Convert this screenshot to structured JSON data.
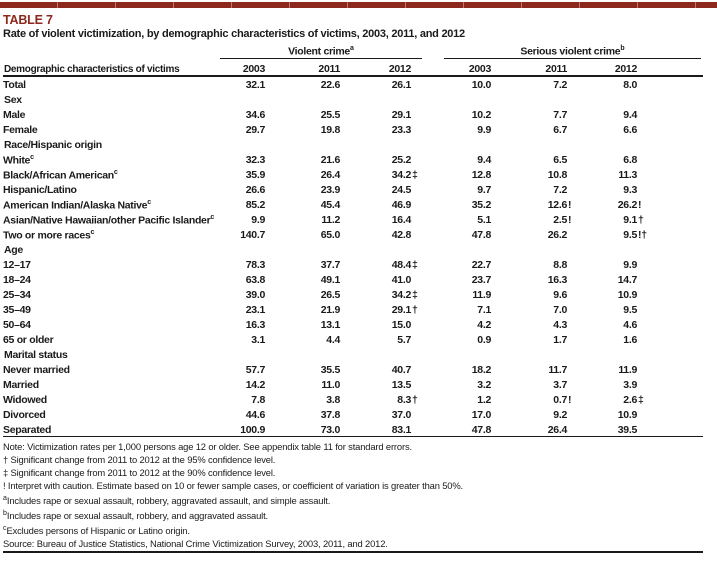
{
  "header": {
    "table_label": "TABLE 7",
    "title": "Rate of violent victimization, by demographic characteristics of victims, 2003, 2011, and 2012",
    "accent_color": "#8c291c"
  },
  "table": {
    "row_header_label": "Demographic characteristics of victims",
    "groups": [
      {
        "label": "Violent crime",
        "sup": "a"
      },
      {
        "label": "Serious violent crime",
        "sup": "b"
      }
    ],
    "years": [
      "2003",
      "2011",
      "2012",
      "2003",
      "2011",
      "2012"
    ],
    "rows": [
      {
        "label": "Total",
        "sup": "",
        "type": "total",
        "values": [
          "32.1",
          "22.6",
          "26.1",
          "10.0",
          "7.2",
          "8.0"
        ]
      },
      {
        "label": "Sex",
        "sup": "",
        "type": "section",
        "values": []
      },
      {
        "label": "Male",
        "sup": "",
        "type": "data",
        "values": [
          "34.6",
          "25.5",
          "29.1",
          "10.2",
          "7.7",
          "9.4"
        ]
      },
      {
        "label": "Female",
        "sup": "",
        "type": "data",
        "values": [
          "29.7",
          "19.8",
          "23.3",
          "9.9",
          "6.7",
          "6.6"
        ]
      },
      {
        "label": "Race/Hispanic origin",
        "sup": "",
        "type": "section",
        "values": []
      },
      {
        "label": "White",
        "sup": "c",
        "type": "data",
        "values": [
          "32.3",
          "21.6",
          "25.2",
          "9.4",
          "6.5",
          "6.8"
        ]
      },
      {
        "label": "Black/African American",
        "sup": "c",
        "type": "data",
        "values": [
          "35.9",
          "26.4",
          "34.2 ‡",
          "12.8",
          "10.8",
          "11.3"
        ]
      },
      {
        "label": "Hispanic/Latino",
        "sup": "",
        "type": "data",
        "values": [
          "26.6",
          "23.9",
          "24.5",
          "9.7",
          "7.2",
          "9.3"
        ]
      },
      {
        "label": "American Indian/Alaska Native",
        "sup": "c",
        "type": "data",
        "values": [
          "85.2",
          "45.4",
          "46.9",
          "35.2",
          "12.6 !",
          "26.2 !"
        ]
      },
      {
        "label": "Asian/Native Hawaiian/other Pacific Islander",
        "sup": "c",
        "type": "data",
        "values": [
          "9.9",
          "11.2",
          "16.4",
          "5.1",
          "2.5 !",
          "9.1 †"
        ]
      },
      {
        "label": "Two or more races",
        "sup": "c",
        "type": "data",
        "values": [
          "140.7",
          "65.0",
          "42.8",
          "47.8",
          "26.2",
          "9.5 !†"
        ]
      },
      {
        "label": "Age",
        "sup": "",
        "type": "section",
        "values": []
      },
      {
        "label": "12–17",
        "sup": "",
        "type": "data",
        "values": [
          "78.3",
          "37.7",
          "48.4 ‡",
          "22.7",
          "8.8",
          "9.9"
        ]
      },
      {
        "label": "18–24",
        "sup": "",
        "type": "data",
        "values": [
          "63.8",
          "49.1",
          "41.0",
          "23.7",
          "16.3",
          "14.7"
        ]
      },
      {
        "label": "25–34",
        "sup": "",
        "type": "data",
        "values": [
          "39.0",
          "26.5",
          "34.2 ‡",
          "11.9",
          "9.6",
          "10.9"
        ]
      },
      {
        "label": "35–49",
        "sup": "",
        "type": "data",
        "values": [
          "23.1",
          "21.9",
          "29.1 †",
          "7.1",
          "7.0",
          "9.5"
        ]
      },
      {
        "label": "50–64",
        "sup": "",
        "type": "data",
        "values": [
          "16.3",
          "13.1",
          "15.0",
          "4.2",
          "4.3",
          "4.6"
        ]
      },
      {
        "label": "65 or older",
        "sup": "",
        "type": "data",
        "values": [
          "3.1",
          "4.4",
          "5.7",
          "0.9",
          "1.7",
          "1.6"
        ]
      },
      {
        "label": "Marital status",
        "sup": "",
        "type": "section",
        "values": []
      },
      {
        "label": "Never married",
        "sup": "",
        "type": "data",
        "values": [
          "57.7",
          "35.5",
          "40.7",
          "18.2",
          "11.7",
          "11.9"
        ]
      },
      {
        "label": "Married",
        "sup": "",
        "type": "data",
        "values": [
          "14.2",
          "11.0",
          "13.5",
          "3.2",
          "3.7",
          "3.9"
        ]
      },
      {
        "label": "Widowed",
        "sup": "",
        "type": "data",
        "values": [
          "7.8",
          "3.8",
          "8.3 †",
          "1.2",
          "0.7 !",
          "2.6 ‡"
        ]
      },
      {
        "label": "Divorced",
        "sup": "",
        "type": "data",
        "values": [
          "44.6",
          "37.8",
          "37.0",
          "17.0",
          "9.2",
          "10.9"
        ]
      },
      {
        "label": "Separated",
        "sup": "",
        "type": "data",
        "values": [
          "100.9",
          "73.0",
          "83.1",
          "47.8",
          "26.4",
          "39.5"
        ]
      }
    ]
  },
  "notes": [
    {
      "sup": "",
      "text": "Note: Victimization rates per 1,000 persons age 12 or older. See appendix table 11 for standard errors."
    },
    {
      "sup": "",
      "text": "† Significant change from 2011 to 2012 at the 95% confidence level."
    },
    {
      "sup": "",
      "text": "‡ Significant change from 2011 to 2012 at the 90% confidence level."
    },
    {
      "sup": "",
      "text": "! Interpret with caution. Estimate based on 10 or fewer sample cases, or coefficient of variation is greater than 50%."
    },
    {
      "sup": "a",
      "text": "Includes rape or sexual assault, robbery, aggravated assault, and simple assault."
    },
    {
      "sup": "b",
      "text": "Includes rape or sexual assault, robbery, and aggravated assault."
    },
    {
      "sup": "c",
      "text": "Excludes persons of Hispanic or Latino origin."
    },
    {
      "sup": "",
      "text": "Source: Bureau of Justice Statistics, National Crime Victimization Survey, 2003, 2011, and 2012."
    }
  ]
}
